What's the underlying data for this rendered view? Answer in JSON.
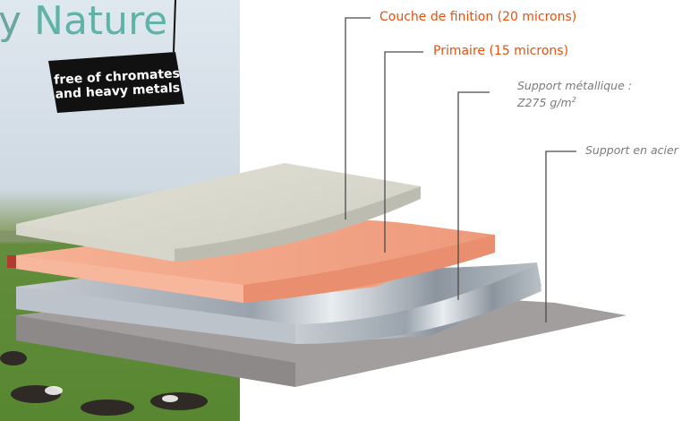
{
  "title": {
    "prefix": "y",
    "word": "Nature"
  },
  "badge": {
    "line1": "free of chromates",
    "line2": "and heavy metals"
  },
  "labels": {
    "finish": "Couche de finition (20 microns)",
    "primer": "Primaire (15 microns)",
    "metal_line1": "Support métallique :",
    "metal_line2": "Z275 g/m",
    "metal_sup": "2",
    "steel": "Support en acier"
  },
  "colors": {
    "finish": "#d9d8cc",
    "primer": "#f3a98a",
    "metal": "#aeb7bf",
    "steel": "#9f9b9b",
    "accent": "#e8500e",
    "title": "#5fb3a8"
  }
}
